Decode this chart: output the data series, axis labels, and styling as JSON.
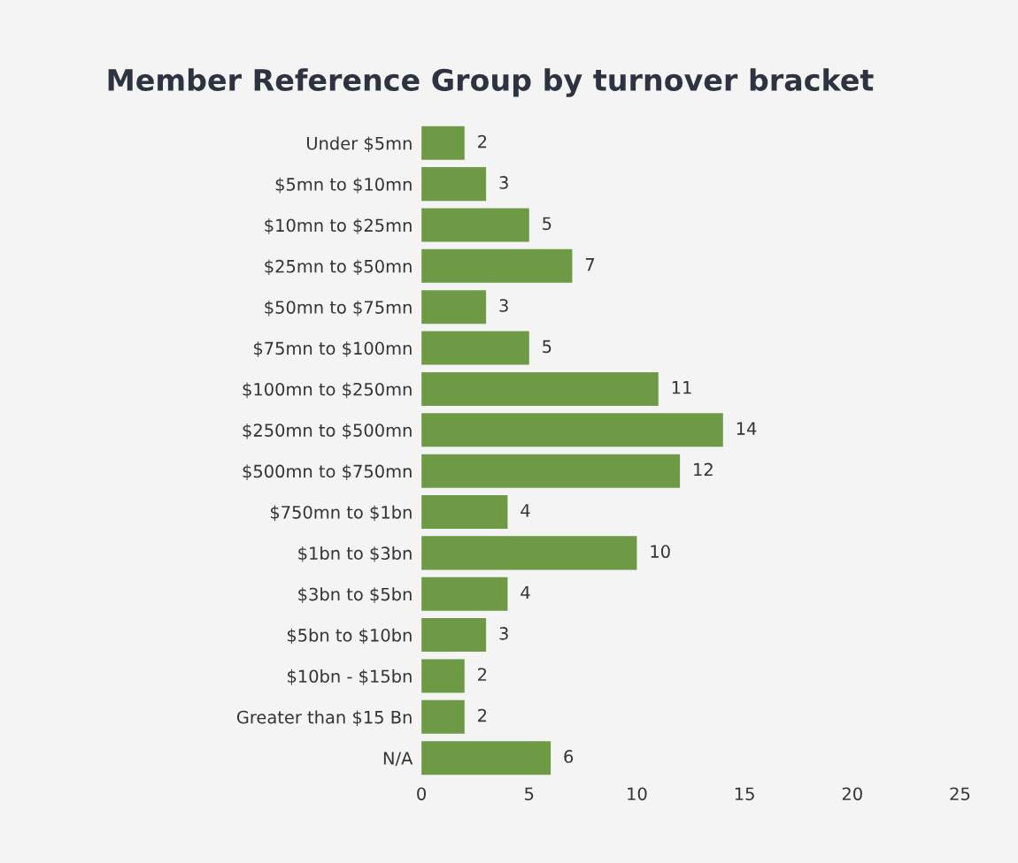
{
  "chart_data": {
    "type": "bar",
    "orientation": "horizontal",
    "title": "Member Reference Group by turnover bracket",
    "categories": [
      "Under $5mn",
      "$5mn to $10mn",
      "$10mn to $25mn",
      "$25mn to $50mn",
      "$50mn to $75mn",
      "$75mn to $100mn",
      "$100mn to $250mn",
      "$250mn to $500mn",
      "$500mn to $750mn",
      "$750mn to $1bn",
      "$1bn to $3bn",
      "$3bn to $5bn",
      "$5bn to $10bn",
      "$10bn - $15bn",
      "Greater than $15 Bn",
      "N/A"
    ],
    "values": [
      2,
      3,
      5,
      7,
      3,
      5,
      11,
      14,
      12,
      4,
      10,
      4,
      3,
      2,
      2,
      6
    ],
    "color": "#6e9a45",
    "xlim": [
      0,
      25
    ],
    "xticks": [
      0,
      5,
      10,
      15,
      20,
      25
    ],
    "data_labels": true,
    "grid": false,
    "legend": false
  }
}
